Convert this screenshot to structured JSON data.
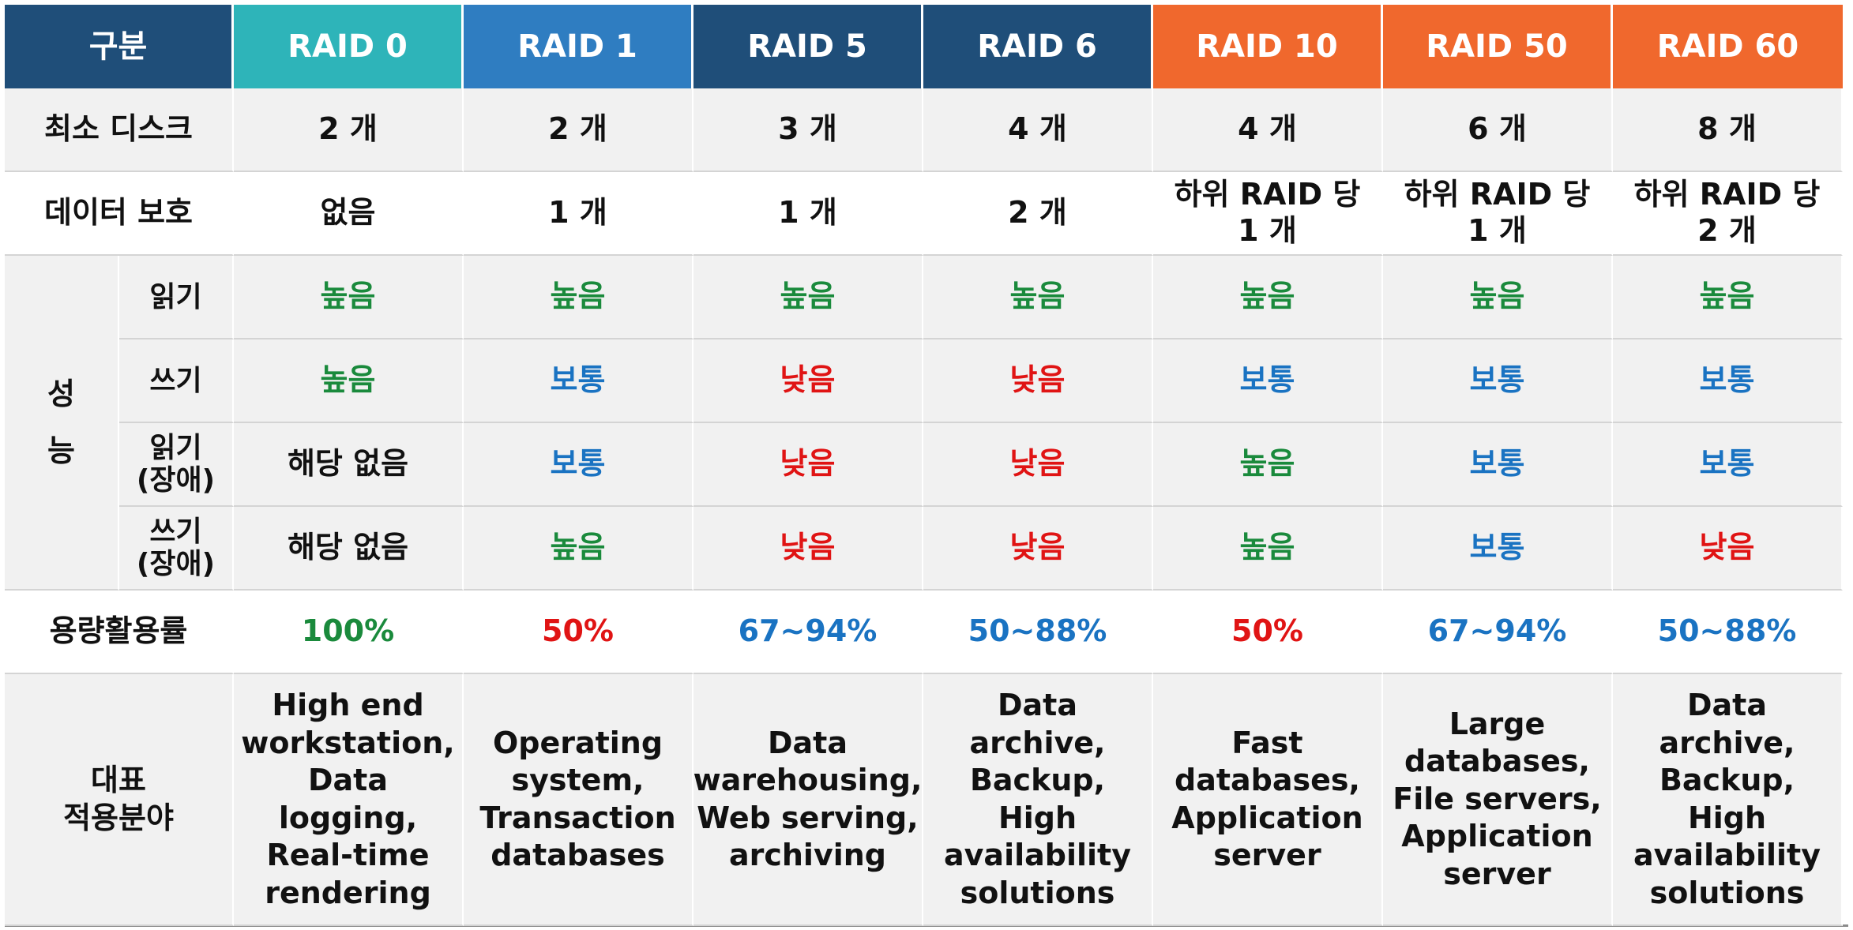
{
  "colors": {
    "header_label": "#1f4e79",
    "raid0": "#2eb4b9",
    "raid1": "#2f7dc1",
    "raid5": "#1f4e79",
    "raid6": "#1f4e79",
    "raid10": "#f0682d",
    "raid50": "#f0682d",
    "raid60": "#f0682d",
    "high": "#1a8a3c",
    "medium": "#1a73c2",
    "low": "#e01414",
    "dark": "#111111"
  },
  "header": {
    "label": "구분",
    "columns": [
      "RAID 0",
      "RAID 1",
      "RAID 5",
      "RAID 6",
      "RAID 10",
      "RAID 50",
      "RAID 60"
    ]
  },
  "rows": {
    "min_disk": {
      "label": "최소 디스크",
      "values": [
        "2 개",
        "2 개",
        "3 개",
        "4 개",
        "4 개",
        "6 개",
        "8 개"
      ]
    },
    "protection": {
      "label": "데이터 보호",
      "values": [
        "없음",
        "1 개",
        "1 개",
        "2 개",
        "하위 RAID 당\n1 개",
        "하위 RAID 당\n1 개",
        "하위 RAID 당\n2 개"
      ]
    },
    "performance": {
      "label_top": "성",
      "label_bottom": "능",
      "read": {
        "label": "읽기",
        "values": [
          "높음",
          "높음",
          "높음",
          "높음",
          "높음",
          "높음",
          "높음"
        ]
      },
      "write": {
        "label": "쓰기",
        "values": [
          "높음",
          "보통",
          "낮음",
          "낮음",
          "보통",
          "보통",
          "보통"
        ]
      },
      "read_degraded": {
        "label": "읽기\n(장애)",
        "values": [
          "해당 없음",
          "보통",
          "낮음",
          "낮음",
          "높음",
          "보통",
          "보통"
        ]
      },
      "write_degraded": {
        "label": "쓰기\n(장애)",
        "values": [
          "해당 없음",
          "높음",
          "낮음",
          "낮음",
          "높음",
          "보통",
          "낮음"
        ]
      }
    },
    "capacity": {
      "label": "용량활용률",
      "values": [
        "100%",
        "50%",
        "67~94%",
        "50~88%",
        "50%",
        "67~94%",
        "50~88%"
      ],
      "colors": [
        "high",
        "low",
        "medium",
        "medium",
        "low",
        "medium",
        "medium"
      ]
    },
    "usage": {
      "label": "대표\n적용분야",
      "values": [
        "High end\nworkstation,\nData logging,\nReal-time\nrendering",
        "Operating\nsystem,\nTransaction\ndatabases",
        "Data\nwarehousing,\nWeb serving,\narchiving",
        "Data archive,\nBackup,\nHigh\navailability\nsolutions",
        "Fast\ndatabases,\nApplication\nserver",
        "Large\ndatabases,\nFile servers,\nApplication\nserver",
        "Data archive,\nBackup,\nHigh\navailability\nsolutions"
      ]
    }
  }
}
